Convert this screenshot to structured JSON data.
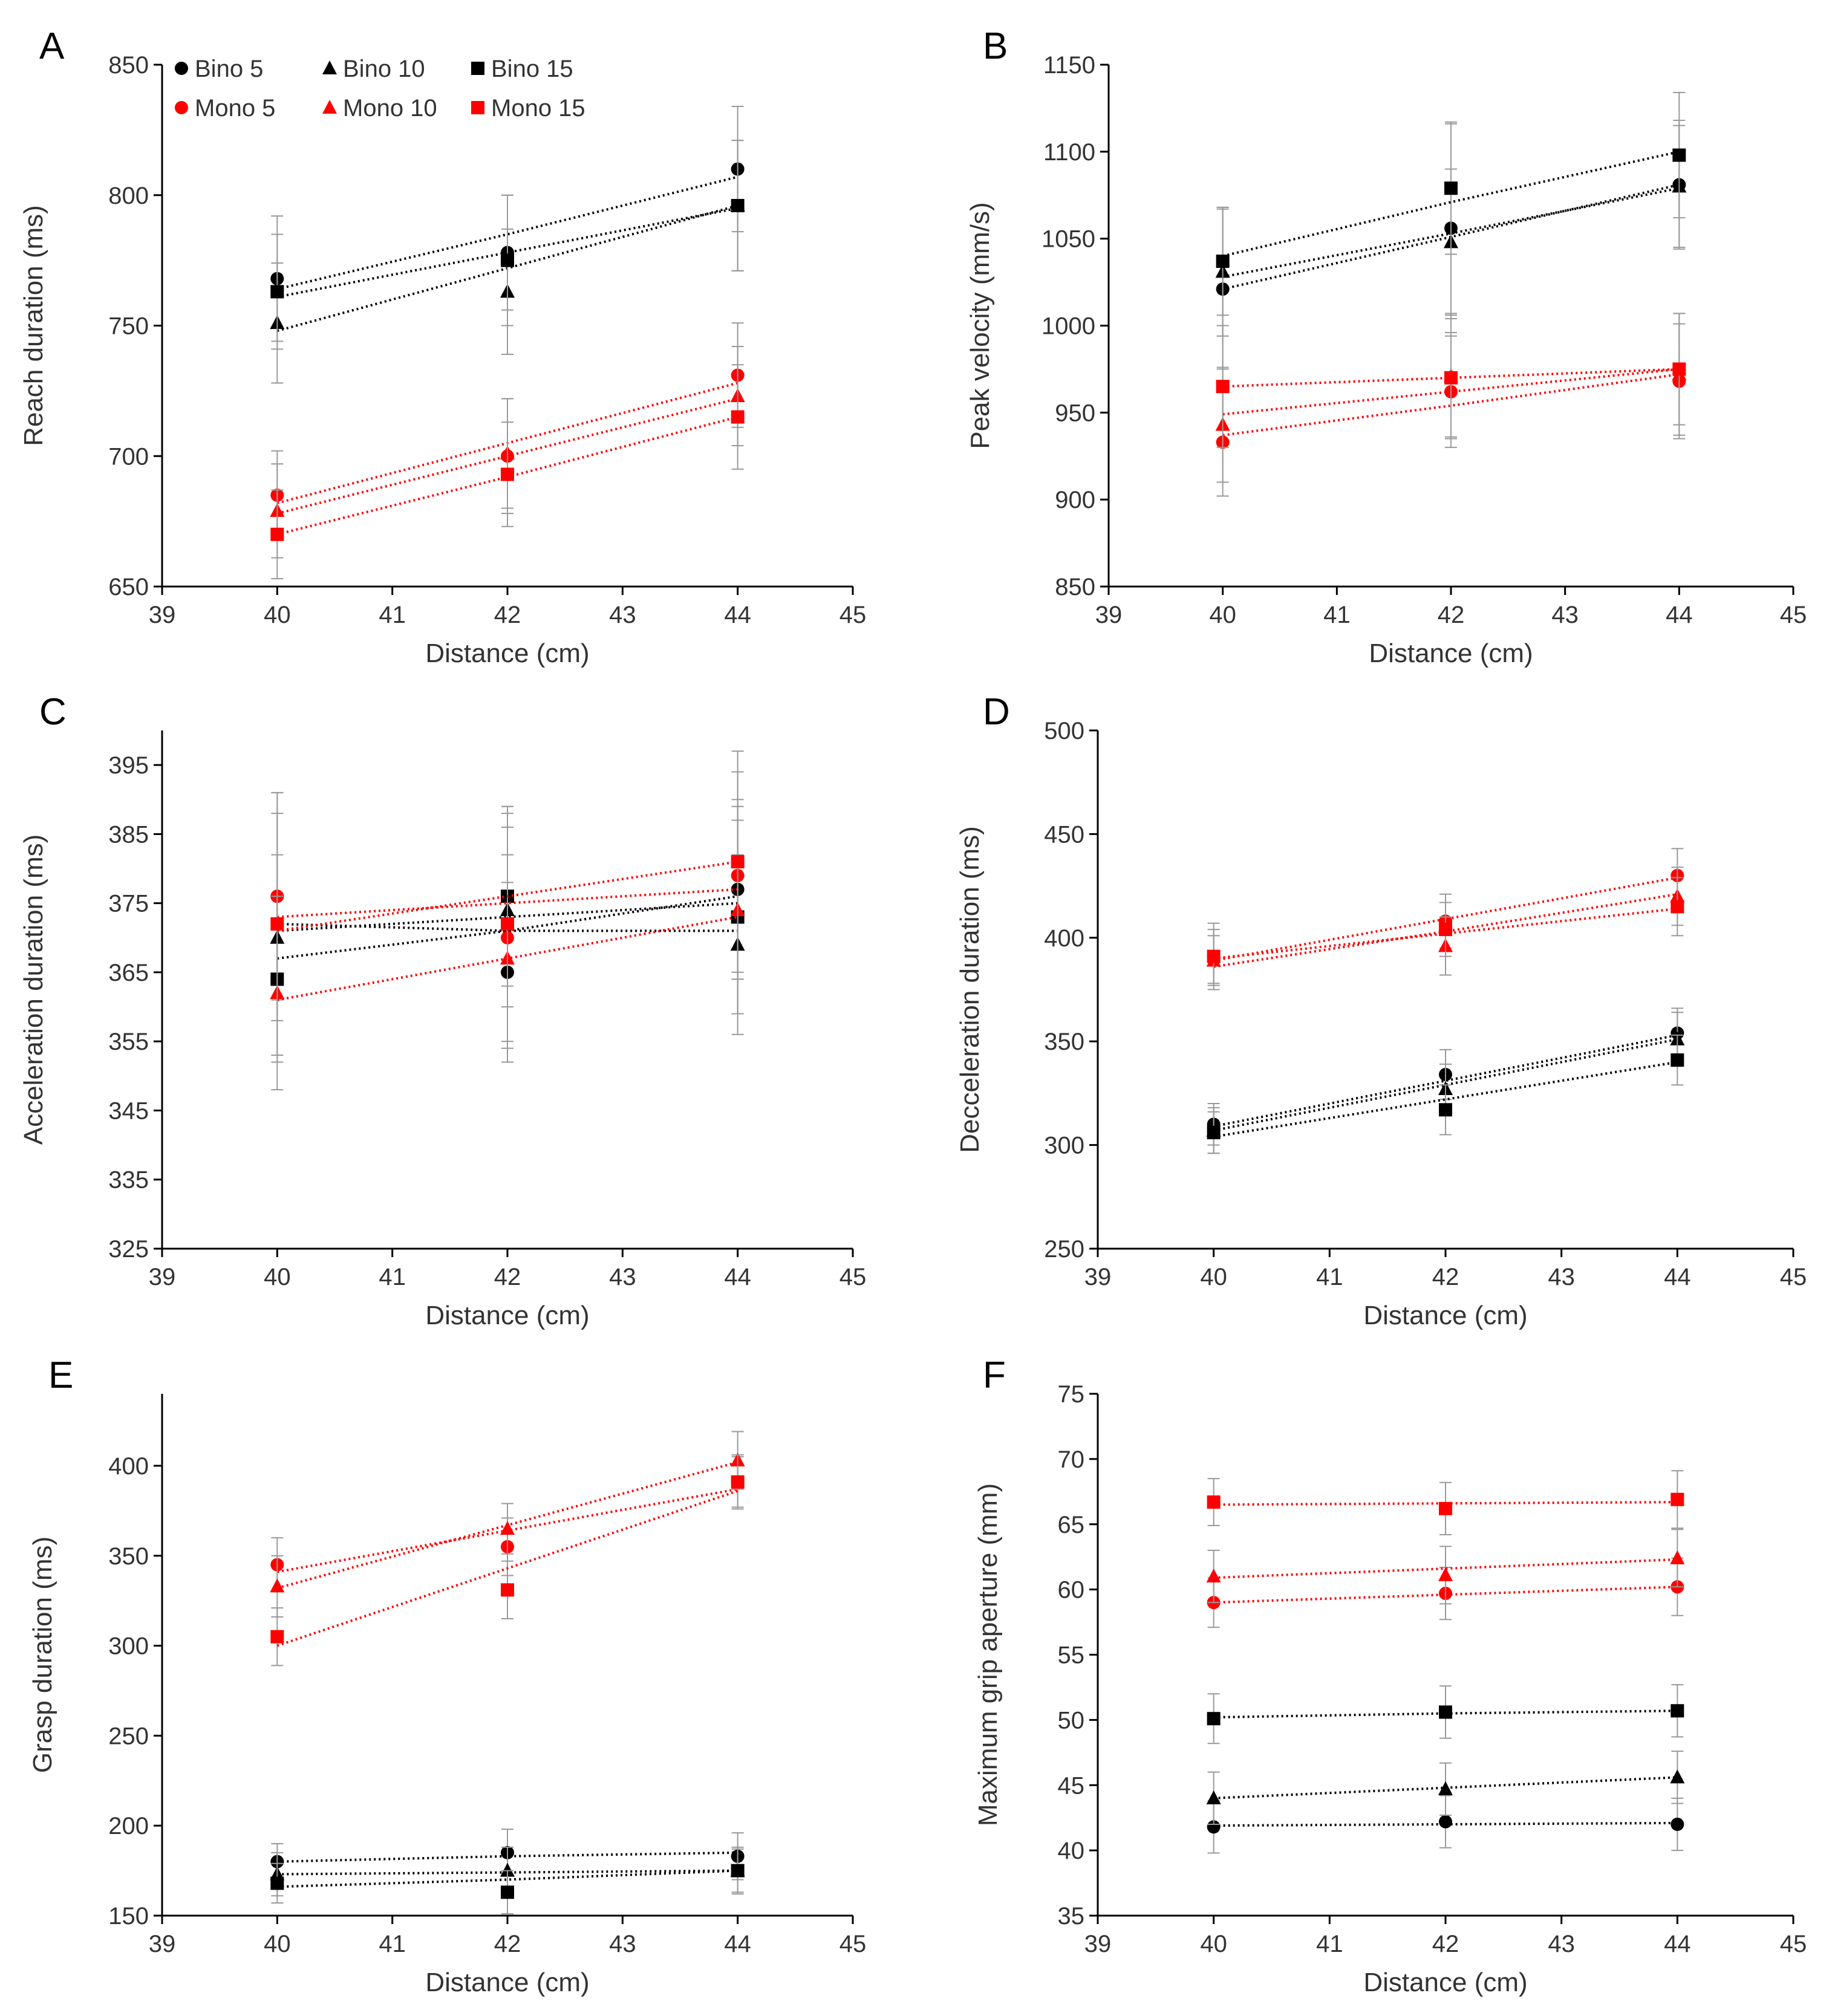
{
  "figure": {
    "legend": [
      {
        "label": "Bino 5",
        "marker": "circle",
        "color": "#000000"
      },
      {
        "label": "Bino 10",
        "marker": "triangle",
        "color": "#000000"
      },
      {
        "label": "Bino 15",
        "marker": "square",
        "color": "#000000"
      },
      {
        "label": "Mono 5",
        "marker": "circle",
        "color": "#ff0000"
      },
      {
        "label": "Mono 10",
        "marker": "triangle",
        "color": "#ff0000"
      },
      {
        "label": "Mono 15",
        "marker": "square",
        "color": "#ff0000"
      }
    ],
    "colors": {
      "bino": "#000000",
      "mono": "#ff0000",
      "axis": "#000000",
      "tick_text": "#333333",
      "error": "#999999"
    }
  },
  "chart_data": [
    {
      "panel": "A",
      "type": "scatter",
      "xlabel": "Distance (cm)",
      "ylabel": "Reach duration (ms)",
      "xlim": [
        39,
        45
      ],
      "ylim": [
        650,
        850
      ],
      "xticks": [
        "39",
        "40",
        "41",
        "42",
        "43",
        "44",
        "45"
      ],
      "yticks": [
        "650",
        "700",
        "750",
        "800",
        "850"
      ],
      "x": [
        40,
        42,
        44
      ],
      "series": [
        {
          "name": "Bino 5",
          "values": [
            768,
            778,
            810
          ],
          "err": [
            24,
            22,
            24
          ],
          "trend": [
            764,
            785,
            807
          ]
        },
        {
          "name": "Bino 10",
          "values": [
            751,
            763,
            796
          ],
          "err": [
            23,
            24,
            25
          ],
          "trend": [
            748,
            772,
            796
          ]
        },
        {
          "name": "Bino 15",
          "values": [
            763,
            775,
            796
          ],
          "err": [
            22,
            25,
            25
          ],
          "trend": [
            761,
            778,
            795
          ]
        },
        {
          "name": "Mono 5",
          "values": [
            685,
            700,
            731
          ],
          "err": [
            17,
            22,
            20
          ],
          "trend": [
            682,
            705,
            728
          ]
        },
        {
          "name": "Mono 10",
          "values": [
            679,
            701,
            723
          ],
          "err": [
            18,
            21,
            19
          ],
          "trend": [
            678,
            700,
            722
          ]
        },
        {
          "name": "Mono 15",
          "values": [
            670,
            693,
            715
          ],
          "err": [
            17,
            20,
            20
          ],
          "trend": [
            670,
            692,
            715
          ]
        }
      ]
    },
    {
      "panel": "B",
      "type": "scatter",
      "xlabel": "Distance (cm)",
      "ylabel": "Peak velocity (mm/s)",
      "xlim": [
        39,
        45
      ],
      "ylim": [
        850,
        1150
      ],
      "xticks": [
        "39",
        "40",
        "41",
        "42",
        "43",
        "44",
        "45"
      ],
      "yticks": [
        "850",
        "900",
        "950",
        "1000",
        "1050",
        "1100",
        "1150"
      ],
      "x": [
        40,
        42,
        44
      ],
      "series": [
        {
          "name": "Bino 5",
          "values": [
            1021,
            1056,
            1081
          ],
          "err": [
            46,
            60,
            37
          ],
          "trend": [
            1021,
            1051,
            1081
          ]
        },
        {
          "name": "Bino 10",
          "values": [
            1031,
            1048,
            1080
          ],
          "err": [
            37,
            42,
            35
          ],
          "trend": [
            1028,
            1053,
            1079
          ]
        },
        {
          "name": "Bino 15",
          "values": [
            1037,
            1079,
            1098
          ],
          "err": [
            31,
            38,
            36
          ],
          "trend": [
            1040,
            1071,
            1100
          ]
        },
        {
          "name": "Mono 5",
          "values": [
            933,
            962,
            968
          ],
          "err": [
            31,
            32,
            33
          ],
          "trend": [
            937,
            954,
            972
          ]
        },
        {
          "name": "Mono 10",
          "values": [
            943,
            971,
            972
          ],
          "err": [
            33,
            36,
            35
          ],
          "trend": [
            949,
            962,
            975
          ]
        },
        {
          "name": "Mono 15",
          "values": [
            965,
            970,
            975
          ],
          "err": [
            35,
            34,
            32
          ],
          "trend": [
            965,
            970,
            975
          ]
        }
      ]
    },
    {
      "panel": "C",
      "type": "scatter",
      "xlabel": "Distance (cm)",
      "ylabel": "Acceleration duration (ms)",
      "xlim": [
        39,
        45
      ],
      "ylim": [
        325,
        400
      ],
      "xticks": [
        "39",
        "40",
        "41",
        "42",
        "43",
        "44",
        "45"
      ],
      "yticks": [
        "325",
        "335",
        "345",
        "355",
        "365",
        "375",
        "385",
        "395"
      ],
      "x": [
        40,
        42,
        44
      ],
      "series": [
        {
          "name": "Bino 5",
          "values": [
            376,
            365,
            377
          ],
          "err": [
            12,
            13,
            13
          ],
          "trend": [
            371,
            373,
            375
          ]
        },
        {
          "name": "Bino 10",
          "values": [
            370,
            374,
            369
          ],
          "err": [
            12,
            14,
            13
          ],
          "trend": [
            372,
            371,
            371
          ]
        },
        {
          "name": "Bino 15",
          "values": [
            364,
            376,
            373
          ],
          "err": [
            12,
            13,
            14
          ],
          "trend": [
            367,
            371,
            376
          ]
        },
        {
          "name": "Mono 5",
          "values": [
            376,
            370,
            379
          ],
          "err": [
            15,
            16,
            15
          ],
          "trend": [
            373,
            375,
            377
          ]
        },
        {
          "name": "Mono 10",
          "values": [
            362,
            367,
            374
          ],
          "err": [
            14,
            15,
            15
          ],
          "trend": [
            361,
            367,
            373
          ]
        },
        {
          "name": "Mono 15",
          "values": [
            372,
            372,
            381
          ],
          "err": [
            19,
            17,
            16
          ],
          "trend": [
            371,
            376,
            381
          ]
        }
      ]
    },
    {
      "panel": "D",
      "type": "scatter",
      "xlabel": "Distance (cm)",
      "ylabel": "Decceleration duration (ms)",
      "xlim": [
        39,
        45
      ],
      "ylim": [
        250,
        500
      ],
      "xticks": [
        "39",
        "40",
        "41",
        "42",
        "43",
        "44",
        "45"
      ],
      "yticks": [
        "250",
        "300",
        "350",
        "400",
        "450",
        "500"
      ],
      "x": [
        40,
        42,
        44
      ],
      "series": [
        {
          "name": "Bino 5",
          "values": [
            310,
            334,
            354
          ],
          "err": [
            10,
            12,
            12
          ],
          "trend": [
            309,
            331,
            353
          ]
        },
        {
          "name": "Bino 10",
          "values": [
            307,
            327,
            351
          ],
          "err": [
            11,
            12,
            13
          ],
          "trend": [
            307,
            329,
            351
          ]
        },
        {
          "name": "Bino 15",
          "values": [
            306,
            317,
            341
          ],
          "err": [
            10,
            12,
            12
          ],
          "trend": [
            304,
            322,
            340
          ]
        },
        {
          "name": "Mono 5",
          "values": [
            391,
            408,
            430
          ],
          "err": [
            13,
            13,
            13
          ],
          "trend": [
            389,
            409,
            429
          ]
        },
        {
          "name": "Mono 10",
          "values": [
            389,
            396,
            420
          ],
          "err": [
            12,
            14,
            14
          ],
          "trend": [
            386,
            403,
            421
          ]
        },
        {
          "name": "Mono 15",
          "values": [
            391,
            404,
            415
          ],
          "err": [
            16,
            13,
            14
          ],
          "trend": [
            390,
            402,
            414
          ]
        }
      ]
    },
    {
      "panel": "E",
      "type": "scatter",
      "xlabel": "Distance (cm)",
      "ylabel": "Grasp duration (ms)",
      "xlim": [
        39,
        45
      ],
      "ylim": [
        150,
        440
      ],
      "xticks": [
        "39",
        "40",
        "41",
        "42",
        "43",
        "44",
        "45"
      ],
      "yticks": [
        "150",
        "200",
        "250",
        "300",
        "350",
        "400"
      ],
      "x": [
        40,
        42,
        44
      ],
      "series": [
        {
          "name": "Bino 5",
          "values": [
            180,
            185,
            183
          ],
          "err": [
            10,
            13,
            13
          ],
          "trend": [
            180,
            183,
            185
          ]
        },
        {
          "name": "Bino 10",
          "values": [
            173,
            175,
            175
          ],
          "err": [
            12,
            13,
            13
          ],
          "trend": [
            173,
            174,
            175
          ]
        },
        {
          "name": "Bino 15",
          "values": [
            168,
            163,
            175
          ],
          "err": [
            11,
            12,
            12
          ],
          "trend": [
            166,
            170,
            175
          ]
        },
        {
          "name": "Mono 5",
          "values": [
            345,
            355,
            391
          ],
          "err": [
            15,
            16,
            14
          ],
          "trend": [
            341,
            364,
            387
          ]
        },
        {
          "name": "Mono 10",
          "values": [
            333,
            365,
            403
          ],
          "err": [
            17,
            14,
            16
          ],
          "trend": [
            332,
            367,
            402
          ]
        },
        {
          "name": "Mono 15",
          "values": [
            305,
            331,
            391
          ],
          "err": [
            16,
            16,
            15
          ],
          "trend": [
            300,
            343,
            386
          ]
        }
      ]
    },
    {
      "panel": "F",
      "type": "scatter",
      "xlabel": "Distance (cm)",
      "ylabel": "Maximum grip aperture (mm)",
      "xlim": [
        39,
        45
      ],
      "ylim": [
        35,
        75
      ],
      "xticks": [
        "39",
        "40",
        "41",
        "42",
        "43",
        "44",
        "45"
      ],
      "yticks": [
        "35",
        "40",
        "45",
        "50",
        "55",
        "60",
        "65",
        "70",
        "75"
      ],
      "x": [
        40,
        42,
        44
      ],
      "series": [
        {
          "name": "Bino 5",
          "values": [
            41.8,
            42.2,
            42.0
          ],
          "err": [
            2.0,
            2.0,
            2.0
          ],
          "trend": [
            41.9,
            42.0,
            42.1
          ]
        },
        {
          "name": "Bino 10",
          "values": [
            44.0,
            44.7,
            45.6
          ],
          "err": [
            2.0,
            2.0,
            2.0
          ],
          "trend": [
            44.0,
            44.8,
            45.6
          ]
        },
        {
          "name": "Bino 15",
          "values": [
            50.1,
            50.6,
            50.7
          ],
          "err": [
            1.9,
            2.0,
            2.0
          ],
          "trend": [
            50.2,
            50.5,
            50.7
          ]
        },
        {
          "name": "Mono 5",
          "values": [
            59.0,
            59.7,
            60.2
          ],
          "err": [
            1.9,
            2.0,
            2.2
          ],
          "trend": [
            59.0,
            59.6,
            60.2
          ]
        },
        {
          "name": "Mono 10",
          "values": [
            61.0,
            61.1,
            62.4
          ],
          "err": [
            2.0,
            2.2,
            2.2
          ],
          "trend": [
            60.9,
            61.6,
            62.3
          ]
        },
        {
          "name": "Mono 15",
          "values": [
            66.7,
            66.2,
            66.9
          ],
          "err": [
            1.8,
            2.0,
            2.2
          ],
          "trend": [
            66.5,
            66.6,
            66.7
          ]
        }
      ]
    }
  ]
}
